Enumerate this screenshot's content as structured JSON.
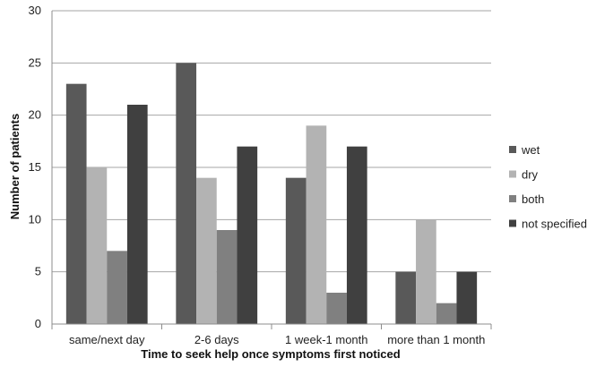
{
  "chart_data": {
    "type": "bar",
    "title": "",
    "xlabel": "Time to seek help once symptoms first noticed",
    "ylabel": "Number of patients",
    "ylim": [
      0,
      30
    ],
    "yticks": [
      "0",
      "5",
      "10",
      "15",
      "20",
      "25",
      "30"
    ],
    "grid": true,
    "legend_position": "right",
    "categories": [
      "same/next day",
      "2-6 days",
      "1 week-1 month",
      "more than 1 month"
    ],
    "series": [
      {
        "name": "wet",
        "color": "#595959",
        "values": [
          23,
          25,
          14,
          5
        ]
      },
      {
        "name": "dry",
        "color": "#b3b3b3",
        "values": [
          15,
          14,
          19,
          10
        ]
      },
      {
        "name": "both",
        "color": "#808080",
        "values": [
          7,
          9,
          3,
          2
        ]
      },
      {
        "name": "not specified",
        "color": "#404040",
        "values": [
          21,
          17,
          17,
          5
        ]
      }
    ]
  }
}
